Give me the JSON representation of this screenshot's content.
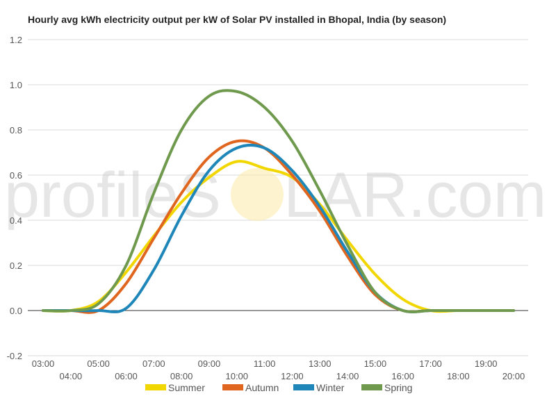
{
  "watermark": {
    "left": "profileS",
    "right": "LAR.com"
  },
  "chart_data": {
    "type": "line",
    "title": "Hourly avg kWh electricity output per kW of Solar PV installed in Bhopal, India (by season)",
    "xlabel": "",
    "ylabel": "",
    "ylim": [
      -0.2,
      1.2
    ],
    "yticks": [
      -0.2,
      0.0,
      0.2,
      0.4,
      0.6,
      0.8,
      1.0,
      1.2
    ],
    "grid": true,
    "legend_position": "bottom",
    "categories": [
      "03:00",
      "04:00",
      "05:00",
      "06:00",
      "07:00",
      "08:00",
      "09:00",
      "10:00",
      "11:00",
      "12:00",
      "13:00",
      "14:00",
      "15:00",
      "16:00",
      "17:00",
      "18:00",
      "19:00",
      "20:00"
    ],
    "series": [
      {
        "name": "Summer",
        "color": "#f2d600",
        "values": [
          0,
          0,
          0.04,
          0.17,
          0.33,
          0.48,
          0.59,
          0.66,
          0.63,
          0.59,
          0.47,
          0.31,
          0.16,
          0.05,
          0,
          0,
          0,
          0
        ]
      },
      {
        "name": "Autumn",
        "color": "#e0661f",
        "values": [
          0,
          0,
          0.0,
          0.12,
          0.32,
          0.52,
          0.68,
          0.75,
          0.72,
          0.6,
          0.44,
          0.24,
          0.07,
          0.0,
          0,
          0,
          0,
          0
        ]
      },
      {
        "name": "Winter",
        "color": "#1e86b8",
        "values": [
          0,
          0,
          0,
          0.01,
          0.18,
          0.42,
          0.62,
          0.72,
          0.72,
          0.62,
          0.46,
          0.26,
          0.08,
          0.0,
          0,
          0,
          0,
          0
        ]
      },
      {
        "name": "Spring",
        "color": "#6f9a4e",
        "values": [
          0,
          0,
          0.03,
          0.2,
          0.52,
          0.8,
          0.95,
          0.97,
          0.9,
          0.75,
          0.53,
          0.29,
          0.08,
          0.0,
          0,
          0,
          0,
          0
        ]
      }
    ]
  }
}
